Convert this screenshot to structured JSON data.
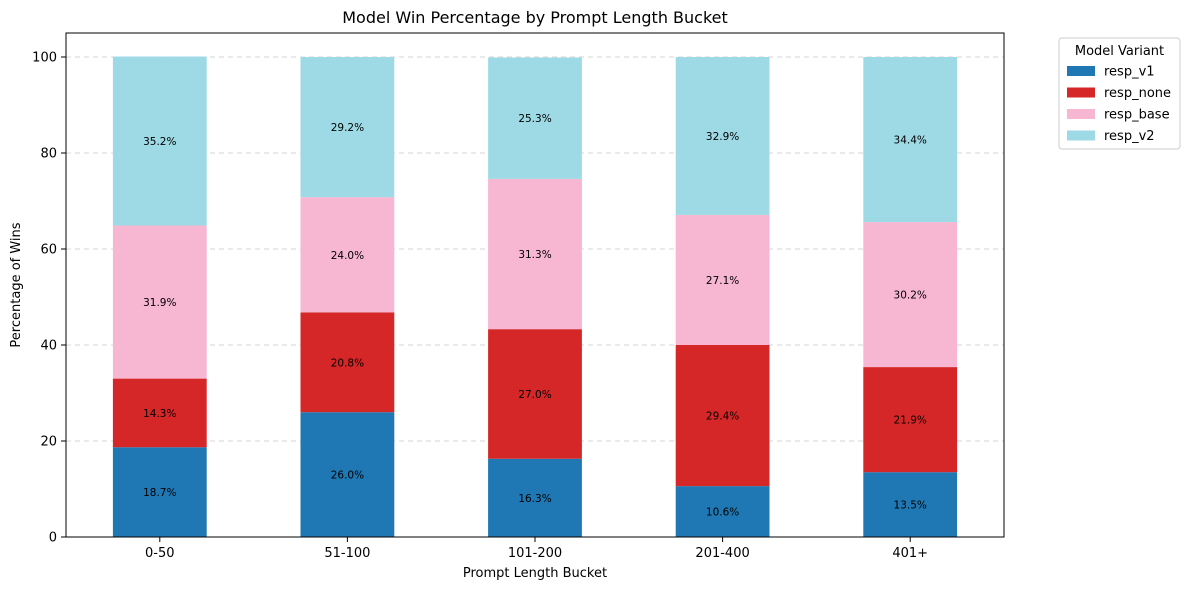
{
  "chart_data": {
    "type": "bar",
    "stacked": true,
    "title": "Model Win Percentage by Prompt Length Bucket",
    "xlabel": "Prompt Length Bucket",
    "ylabel": "Percentage of Wins",
    "ylim": [
      0,
      105
    ],
    "yticks": [
      0,
      20,
      40,
      60,
      80,
      100
    ],
    "grid": "y-dashed",
    "categories": [
      "0-50",
      "51-100",
      "101-200",
      "201-400",
      "401+"
    ],
    "series": [
      {
        "name": "resp_v1",
        "color": "#1f77b4",
        "values": [
          18.7,
          26.0,
          16.3,
          10.6,
          13.5
        ],
        "labels": [
          "18.7%",
          "26.0%",
          "16.3%",
          "10.6%",
          "13.5%"
        ]
      },
      {
        "name": "resp_none",
        "color": "#d62728",
        "values": [
          14.3,
          20.8,
          27.0,
          29.4,
          21.9
        ],
        "labels": [
          "14.3%",
          "20.8%",
          "27.0%",
          "29.4%",
          "21.9%"
        ]
      },
      {
        "name": "resp_base",
        "color": "#f7b6d2",
        "values": [
          31.9,
          24.0,
          31.3,
          27.1,
          30.2
        ],
        "labels": [
          "31.9%",
          "24.0%",
          "31.3%",
          "27.1%",
          "30.2%"
        ]
      },
      {
        "name": "resp_v2",
        "color": "#9edae5",
        "values": [
          35.2,
          29.2,
          25.3,
          32.9,
          34.4
        ],
        "labels": [
          "35.2%",
          "29.2%",
          "25.3%",
          "32.9%",
          "34.4%"
        ]
      }
    ],
    "legend": {
      "title": "Model Variant",
      "placement": "upper-right-outside"
    }
  }
}
